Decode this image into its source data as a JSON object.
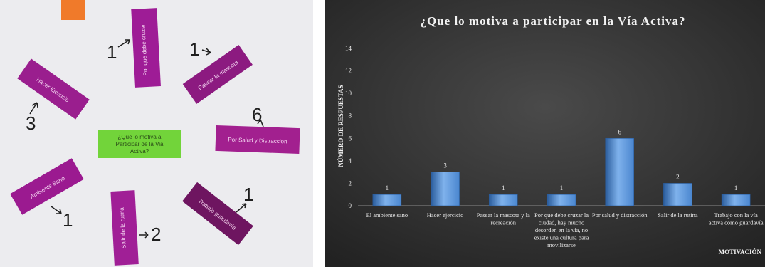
{
  "photo": {
    "center_card_text": "¿Que lo motiva a Participar de la Via Activa?",
    "counts": [
      "1",
      "1",
      "3",
      "6",
      "1",
      "2",
      "1"
    ]
  },
  "chart_data": {
    "type": "bar",
    "title": "¿Que lo motiva a participar en la Vía Activa?",
    "ylabel": "NÚMERO DE RESPUESTAS",
    "xlabel": "MOTIVACIÓN",
    "ylim": [
      0,
      14
    ],
    "yticks": [
      0,
      2,
      4,
      6,
      8,
      10,
      12,
      14
    ],
    "categories": [
      "El ambiente sano",
      "Hacer ejercicio",
      "Pasear la mascota y la recreación",
      "Por que debe cruzar la ciudad, hay mucho desorden en la vía, no existe una cultura para movilizarse",
      "Por salud y distracción",
      "Salir de la rutina",
      "Trabajo con la vía activa como guardavía"
    ],
    "category_lines": [
      [
        "El ambiente sano"
      ],
      [
        "Hacer ejercicio"
      ],
      [
        "Pasear la mascota y la",
        "recreación"
      ],
      [
        "Por que debe cruzar la",
        "ciudad, hay mucho",
        "desorden en la vía, no",
        "existe una cultura para",
        "movilizarse"
      ],
      [
        "Por salud y distracción"
      ],
      [
        "Salir de la rutina"
      ],
      [
        "Trabajo con la vía",
        "activa como guardavía"
      ]
    ],
    "values": [
      1,
      3,
      1,
      1,
      6,
      2,
      1
    ],
    "data_labels": [
      "1",
      "3",
      "1",
      "1",
      "6",
      "2",
      "1"
    ],
    "grid": false,
    "colors": {
      "bar": "#4a86cf",
      "bar_light": "#7fb2ec",
      "bar_dark": "#2a5c9c",
      "background": "#3a3a3a"
    }
  }
}
